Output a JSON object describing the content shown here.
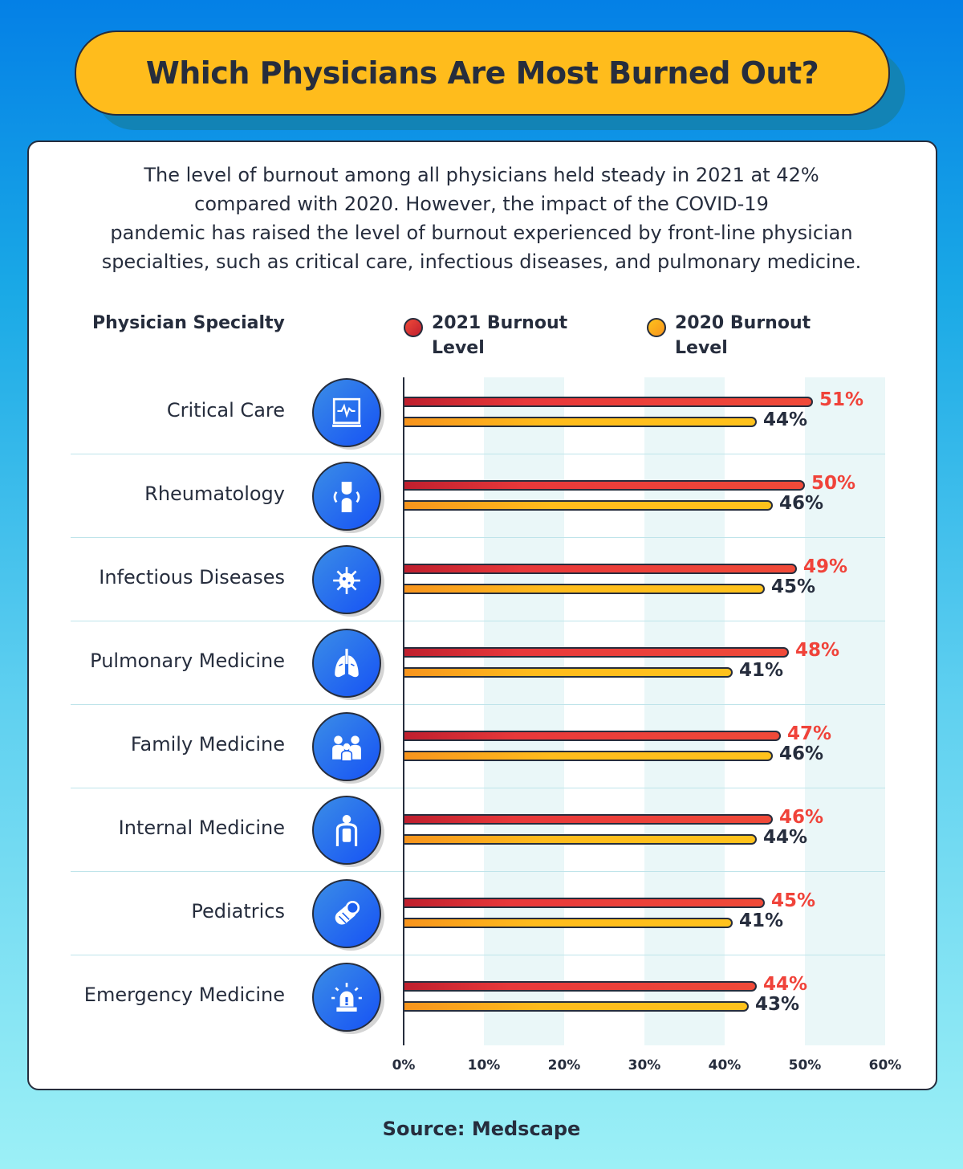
{
  "title": "Which Physicians Are Most Burned Out?",
  "description": [
    "The level of burnout among all physicians held steady in 2021 at 42%",
    "compared with 2020. However, the impact of the COVID-19",
    "pandemic has raised the level of burnout experienced by front-line physician",
    "specialties, such as critical care, infectious diseases, and pulmonary medicine."
  ],
  "source": "Source: Medscape",
  "colors": {
    "series_2021": "#f0433a",
    "series_2020": "#ffbc1c",
    "icon_bg": "#1a5ff0"
  },
  "chart_data": {
    "type": "bar",
    "orientation": "horizontal",
    "category_header": "Physician Specialty",
    "categories": [
      "Critical Care",
      "Rheumatology",
      "Infectious Diseases",
      "Pulmonary Medicine",
      "Family Medicine",
      "Internal Medicine",
      "Pediatrics",
      "Emergency Medicine"
    ],
    "icons": [
      "heart-monitor-icon",
      "knee-joint-icon",
      "virus-icon",
      "lungs-icon",
      "family-icon",
      "internal-organs-icon",
      "baby-icon",
      "emergency-siren-icon"
    ],
    "series": [
      {
        "name_line1": "2021 Burnout",
        "name_line2": "Level",
        "values": [
          51,
          50,
          49,
          48,
          47,
          46,
          45,
          44
        ],
        "labels": [
          "51%",
          "50%",
          "49%",
          "48%",
          "47%",
          "46%",
          "45%",
          "44%"
        ]
      },
      {
        "name_line1": "2020 Burnout",
        "name_line2": "Level",
        "values": [
          44,
          46,
          45,
          41,
          46,
          44,
          41,
          43
        ],
        "labels": [
          "44%",
          "46%",
          "45%",
          "41%",
          "46%",
          "44%",
          "41%",
          "43%"
        ]
      }
    ],
    "xlim": [
      0,
      60
    ],
    "xticks": [
      "0%",
      "10%",
      "20%",
      "30%",
      "40%",
      "50%",
      "60%"
    ],
    "legend_placement": "top",
    "grid": "alternating vertical bands"
  }
}
